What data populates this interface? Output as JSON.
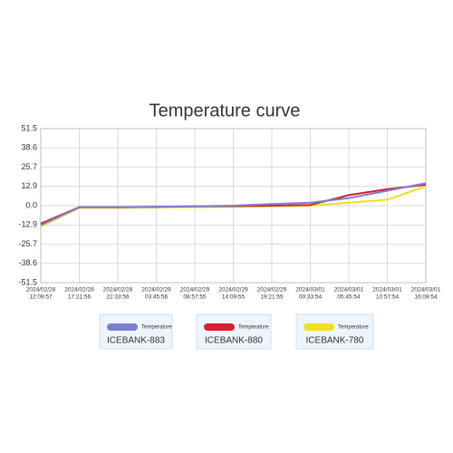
{
  "chart_data": {
    "type": "line",
    "title": "Temperature curve",
    "categories": [
      [
        "2024/02/28",
        "12:09:57"
      ],
      [
        "2024/02/28",
        "17:21:56"
      ],
      [
        "2024/02/28",
        "22:33:56"
      ],
      [
        "2024/02/29",
        "03:45:56"
      ],
      [
        "2024/02/29",
        "08:57:55"
      ],
      [
        "2024/02/29",
        "14:09:55"
      ],
      [
        "2024/02/29",
        "19:21:55"
      ],
      [
        "2024/03/01",
        "00:33:54"
      ],
      [
        "2024/03/01",
        "05:45:54"
      ],
      [
        "2024/03/01",
        "10:57:54"
      ],
      [
        "2024/03/01",
        "16:09:54"
      ]
    ],
    "series": [
      {
        "name": "ICEBANK-883",
        "label": "Temperature",
        "color": "#7b7fd0",
        "values": [
          -13,
          -1,
          -1,
          -0.8,
          -0.5,
          0,
          1,
          2,
          5,
          10,
          15
        ]
      },
      {
        "name": "ICEBANK-880",
        "label": "Temperature",
        "color": "#d42030",
        "values": [
          -12,
          -1,
          -1,
          -0.8,
          -0.5,
          -0.3,
          0,
          0.5,
          7,
          11,
          14
        ]
      },
      {
        "name": "ICEBANK-780",
        "label": "Temperature",
        "color": "#f0e020",
        "values": [
          -14,
          -1.5,
          -1.5,
          -1.2,
          -1,
          -0.8,
          -0.5,
          0,
          2,
          4,
          13
        ]
      }
    ],
    "ylim": [
      -51.5,
      51.5
    ],
    "yticks": [
      -51.5,
      -38.6,
      -25.7,
      -12.9,
      {
        "value": 0,
        "label": "0.0"
      },
      12.9,
      25.7,
      38.6,
      51.5
    ],
    "grid": true,
    "legend": "bottom"
  }
}
